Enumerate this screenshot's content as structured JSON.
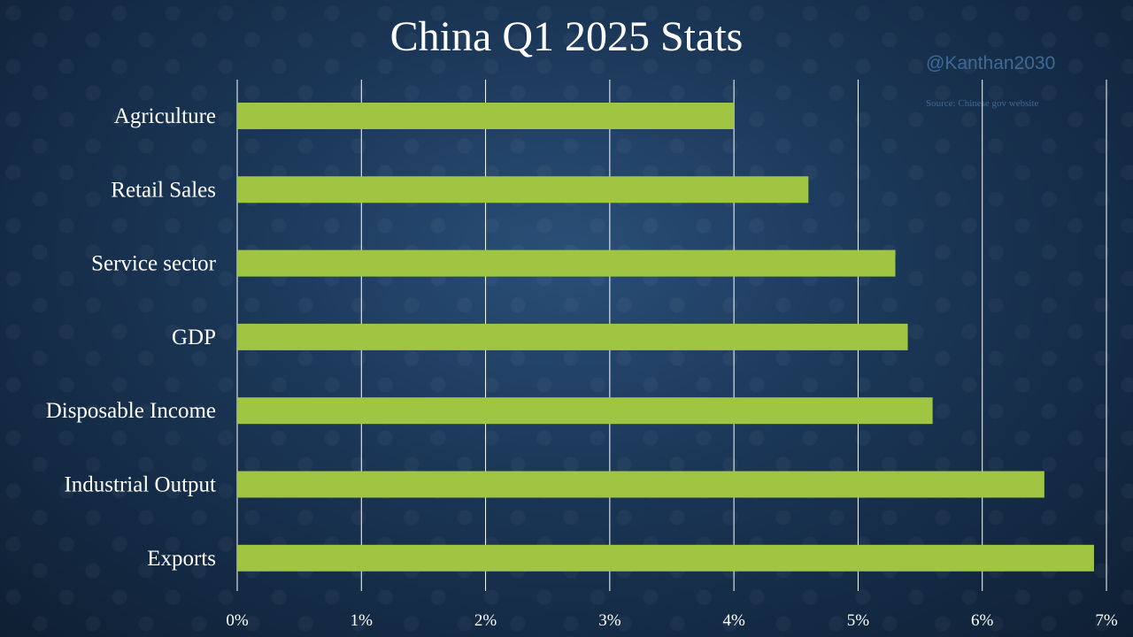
{
  "handle": "@Kanthan2030",
  "source": "Source: Chinese gov website",
  "chart_data": {
    "type": "bar",
    "orientation": "horizontal",
    "title": "China Q1 2025 Stats",
    "categories": [
      "Agriculture",
      "Retail Sales",
      "Service sector",
      "GDP",
      "Disposable Income",
      "Industrial Output",
      "Exports"
    ],
    "values": [
      4.0,
      4.6,
      5.3,
      5.4,
      5.6,
      6.5,
      6.9
    ],
    "xlim": [
      0,
      7
    ],
    "x_ticks": [
      "0%",
      "1%",
      "2%",
      "3%",
      "4%",
      "5%",
      "6%",
      "7%"
    ],
    "unit": "%",
    "grid": true,
    "legend": "none",
    "colors": {
      "bar": "#9fc543",
      "grid": "#ffffff",
      "text": "#ffffff"
    }
  }
}
